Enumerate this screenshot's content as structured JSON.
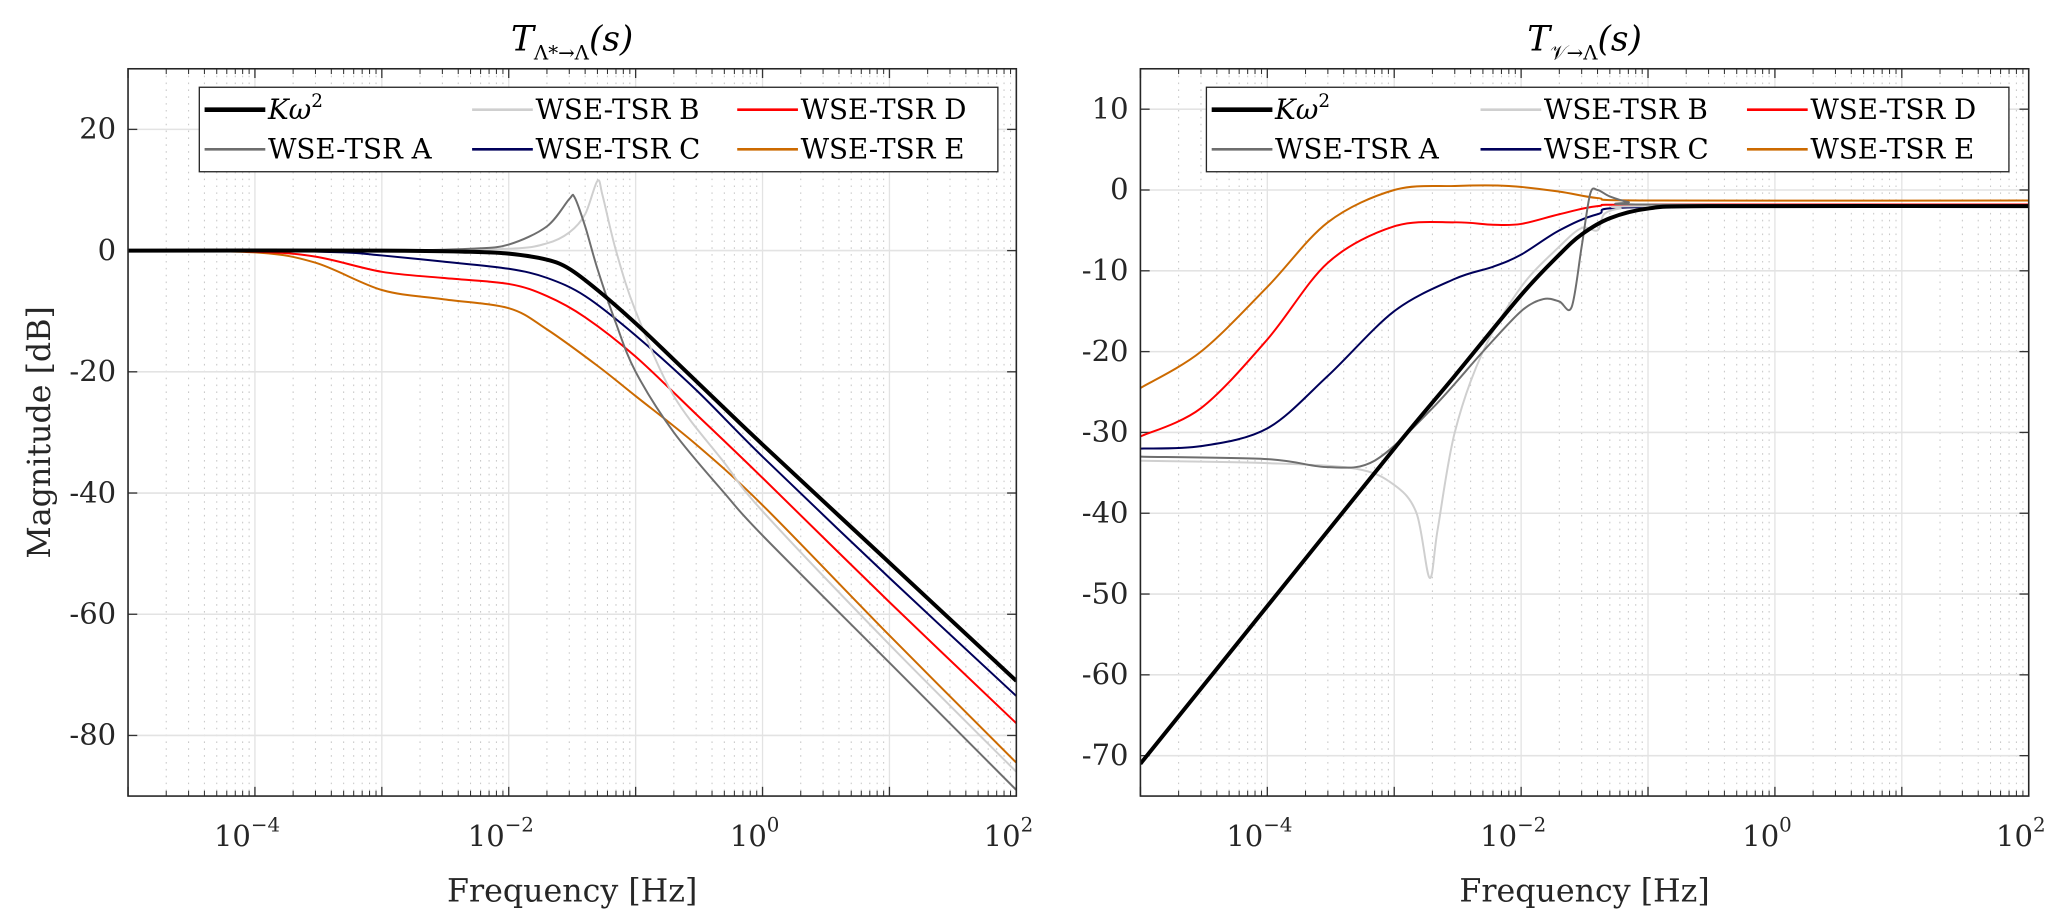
{
  "chart_data": [
    {
      "type": "line",
      "title": "T_{Λ*→Λ}(s)",
      "title_main": "T",
      "title_sub": "Λ*→Λ",
      "title_tail": "(s)",
      "xlabel": "Frequency [Hz]",
      "ylabel": "Magnitude [dB]",
      "xscale": "log",
      "xlim": [
        1e-05,
        100
      ],
      "ylim": [
        -90,
        30
      ],
      "xticks": [
        0.0001,
        0.01,
        1,
        100
      ],
      "xtick_labels": [
        {
          "base": "10",
          "exp": "−4"
        },
        {
          "base": "10",
          "exp": "−2"
        },
        {
          "base": "10",
          "exp": "0"
        },
        {
          "base": "10",
          "exp": "2"
        }
      ],
      "yticks": [
        20,
        0,
        -20,
        -40,
        -60,
        -80
      ],
      "ytick_labels": [
        "20",
        "0",
        "-20",
        "-40",
        "-60",
        "-80"
      ],
      "grid": true,
      "legend": "top",
      "series": [
        {
          "name": "Kω²",
          "legend_label": "Kω",
          "legend_sup": "2",
          "color": "#000000",
          "width": 3,
          "points": [
            [
              1e-05,
              0
            ],
            [
              0.001,
              0
            ],
            [
              0.005,
              -0.2
            ],
            [
              0.01,
              -0.5
            ],
            [
              0.02,
              -1.5
            ],
            [
              0.03,
              -3
            ],
            [
              0.05,
              -6.5
            ],
            [
              0.1,
              -12
            ],
            [
              0.2,
              -18
            ],
            [
              0.5,
              -26
            ],
            [
              1,
              -32
            ],
            [
              10,
              -51.5
            ],
            [
              100,
              -71
            ]
          ]
        },
        {
          "name": "WSE-TSR A",
          "legend_label": "WSE-TSR A",
          "color": "#6e6e6e",
          "width": 1.5,
          "points": [
            [
              1e-05,
              0
            ],
            [
              0.001,
              0
            ],
            [
              0.005,
              0.3
            ],
            [
              0.01,
              1
            ],
            [
              0.02,
              4
            ],
            [
              0.03,
              8.5
            ],
            [
              0.033,
              8.8
            ],
            [
              0.04,
              4
            ],
            [
              0.05,
              -3
            ],
            [
              0.07,
              -12
            ],
            [
              0.1,
              -20
            ],
            [
              0.2,
              -30
            ],
            [
              0.5,
              -40
            ],
            [
              1,
              -47
            ],
            [
              10,
              -68
            ],
            [
              100,
              -89
            ]
          ]
        },
        {
          "name": "WSE-TSR B",
          "legend_label": "WSE-TSR B",
          "color": "#cfcfcf",
          "width": 1.5,
          "points": [
            [
              1e-05,
              0
            ],
            [
              0.001,
              0
            ],
            [
              0.01,
              0.3
            ],
            [
              0.02,
              1.2
            ],
            [
              0.03,
              3
            ],
            [
              0.04,
              6
            ],
            [
              0.05,
              11.5
            ],
            [
              0.055,
              9
            ],
            [
              0.07,
              0
            ],
            [
              0.1,
              -10
            ],
            [
              0.2,
              -24
            ],
            [
              0.5,
              -35
            ],
            [
              1,
              -43
            ],
            [
              10,
              -65
            ],
            [
              100,
              -86
            ]
          ]
        },
        {
          "name": "WSE-TSR C",
          "legend_label": "WSE-TSR C",
          "color": "#00005a",
          "width": 1.5,
          "points": [
            [
              1e-05,
              0
            ],
            [
              0.0001,
              0
            ],
            [
              0.0005,
              -0.3
            ],
            [
              0.001,
              -0.8
            ],
            [
              0.003,
              -1.8
            ],
            [
              0.01,
              -3
            ],
            [
              0.02,
              -4.5
            ],
            [
              0.04,
              -7.5
            ],
            [
              0.1,
              -14
            ],
            [
              0.3,
              -23
            ],
            [
              1,
              -34
            ],
            [
              10,
              -54
            ],
            [
              100,
              -73.5
            ]
          ]
        },
        {
          "name": "WSE-TSR D",
          "legend_label": "WSE-TSR D",
          "color": "#ff0000",
          "width": 1.5,
          "points": [
            [
              1e-05,
              0
            ],
            [
              0.0001,
              -0.2
            ],
            [
              0.0003,
              -1
            ],
            [
              0.001,
              -3.5
            ],
            [
              0.003,
              -4.5
            ],
            [
              0.01,
              -5.5
            ],
            [
              0.02,
              -7.5
            ],
            [
              0.04,
              -11
            ],
            [
              0.1,
              -17.5
            ],
            [
              0.3,
              -27
            ],
            [
              1,
              -37.5
            ],
            [
              10,
              -58
            ],
            [
              100,
              -78
            ]
          ]
        },
        {
          "name": "WSE-TSR E",
          "legend_label": "WSE-TSR E",
          "color": "#cc6a00",
          "width": 1.5,
          "points": [
            [
              1e-05,
              0
            ],
            [
              0.0001,
              -0.3
            ],
            [
              0.0003,
              -2
            ],
            [
              0.001,
              -6.5
            ],
            [
              0.003,
              -8
            ],
            [
              0.01,
              -9.5
            ],
            [
              0.02,
              -13
            ],
            [
              0.05,
              -19
            ],
            [
              0.1,
              -24
            ],
            [
              0.3,
              -32
            ],
            [
              1,
              -42
            ],
            [
              10,
              -63.5
            ],
            [
              100,
              -84.5
            ]
          ]
        }
      ]
    },
    {
      "type": "line",
      "title": "T_{V→Λ}(s)",
      "title_main": "T",
      "title_sub": "𝒱→Λ",
      "title_tail": "(s)",
      "xlabel": "Frequency [Hz]",
      "ylabel": "",
      "xscale": "log",
      "xlim": [
        1e-05,
        100
      ],
      "ylim": [
        -75,
        15
      ],
      "xticks": [
        0.0001,
        0.01,
        1,
        100
      ],
      "xtick_labels": [
        {
          "base": "10",
          "exp": "−4"
        },
        {
          "base": "10",
          "exp": "−2"
        },
        {
          "base": "10",
          "exp": "0"
        },
        {
          "base": "10",
          "exp": "2"
        }
      ],
      "yticks": [
        10,
        0,
        -10,
        -20,
        -30,
        -40,
        -50,
        -60,
        -70
      ],
      "ytick_labels": [
        "10",
        "0",
        "-10",
        "-20",
        "-30",
        "-40",
        "-50",
        "-60",
        "-70"
      ],
      "grid": true,
      "legend": "top",
      "series": [
        {
          "name": "Kω²",
          "legend_label": "Kω",
          "legend_sup": "2",
          "color": "#000000",
          "width": 3,
          "points": [
            [
              1e-05,
              -71
            ],
            [
              0.0001,
              -51.5
            ],
            [
              0.001,
              -32
            ],
            [
              0.003,
              -23
            ],
            [
              0.01,
              -13
            ],
            [
              0.02,
              -8
            ],
            [
              0.03,
              -5.5
            ],
            [
              0.05,
              -3.5
            ],
            [
              0.1,
              -2.3
            ],
            [
              0.3,
              -2
            ],
            [
              100,
              -2
            ]
          ]
        },
        {
          "name": "WSE-TSR A",
          "legend_label": "WSE-TSR A",
          "color": "#6e6e6e",
          "width": 1.5,
          "points": [
            [
              1e-05,
              -33
            ],
            [
              0.0001,
              -33.3
            ],
            [
              0.0003,
              -34.3
            ],
            [
              0.0007,
              -33.5
            ],
            [
              0.002,
              -27
            ],
            [
              0.005,
              -20
            ],
            [
              0.01,
              -15
            ],
            [
              0.015,
              -13.5
            ],
            [
              0.02,
              -13.8
            ],
            [
              0.025,
              -14.5
            ],
            [
              0.03,
              -7
            ],
            [
              0.035,
              -0.5
            ],
            [
              0.04,
              0
            ],
            [
              0.05,
              -0.8
            ],
            [
              0.07,
              -1.5
            ],
            [
              0.1,
              -1.8
            ],
            [
              100,
              -2
            ]
          ]
        },
        {
          "name": "WSE-TSR B",
          "legend_label": "WSE-TSR B",
          "color": "#cfcfcf",
          "width": 1.5,
          "points": [
            [
              1e-05,
              -33.5
            ],
            [
              0.0001,
              -33.8
            ],
            [
              0.0005,
              -34.5
            ],
            [
              0.001,
              -36.5
            ],
            [
              0.0015,
              -40
            ],
            [
              0.0019,
              -48
            ],
            [
              0.0022,
              -42
            ],
            [
              0.003,
              -30
            ],
            [
              0.005,
              -20
            ],
            [
              0.01,
              -12
            ],
            [
              0.02,
              -7
            ],
            [
              0.03,
              -4.7
            ],
            [
              0.04,
              -5
            ],
            [
              0.045,
              -3
            ],
            [
              0.06,
              -2.3
            ],
            [
              0.1,
              -2
            ],
            [
              100,
              -2
            ]
          ]
        },
        {
          "name": "WSE-TSR C",
          "legend_label": "WSE-TSR C",
          "color": "#00005a",
          "width": 1.5,
          "points": [
            [
              1e-05,
              -32
            ],
            [
              3e-05,
              -31.7
            ],
            [
              0.0001,
              -29.5
            ],
            [
              0.0003,
              -23
            ],
            [
              0.001,
              -15
            ],
            [
              0.003,
              -11
            ],
            [
              0.006,
              -9.5
            ],
            [
              0.01,
              -8
            ],
            [
              0.02,
              -5
            ],
            [
              0.04,
              -3
            ],
            [
              0.1,
              -2.1
            ],
            [
              100,
              -2
            ]
          ]
        },
        {
          "name": "WSE-TSR D",
          "legend_label": "WSE-TSR D",
          "color": "#ff0000",
          "width": 1.5,
          "points": [
            [
              1e-05,
              -30.5
            ],
            [
              3e-05,
              -27
            ],
            [
              0.0001,
              -18.5
            ],
            [
              0.0003,
              -9
            ],
            [
              0.001,
              -4.5
            ],
            [
              0.003,
              -4
            ],
            [
              0.006,
              -4.3
            ],
            [
              0.01,
              -4.2
            ],
            [
              0.02,
              -3
            ],
            [
              0.04,
              -2
            ],
            [
              0.1,
              -1.8
            ],
            [
              100,
              -1.8
            ]
          ]
        },
        {
          "name": "WSE-TSR E",
          "legend_label": "WSE-TSR E",
          "color": "#cc6a00",
          "width": 1.5,
          "points": [
            [
              1e-05,
              -24.5
            ],
            [
              3e-05,
              -20
            ],
            [
              0.0001,
              -12
            ],
            [
              0.0003,
              -4
            ],
            [
              0.001,
              0
            ],
            [
              0.003,
              0.5
            ],
            [
              0.008,
              0.5
            ],
            [
              0.02,
              -0.2
            ],
            [
              0.04,
              -1
            ],
            [
              0.1,
              -1.3
            ],
            [
              100,
              -1.3
            ]
          ]
        }
      ]
    }
  ]
}
